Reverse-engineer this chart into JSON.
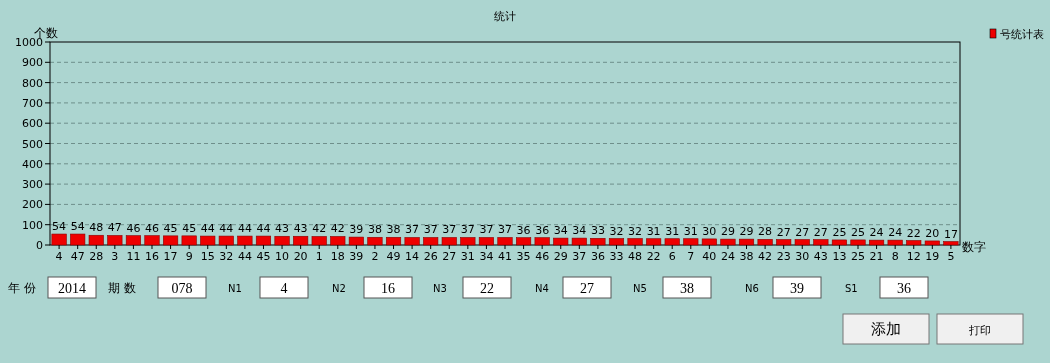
{
  "chart_data": {
    "type": "bar",
    "title": "统计",
    "ylabel": "个数",
    "xlabel": "数字",
    "categories": [
      "4",
      "47",
      "28",
      "3",
      "11",
      "16",
      "17",
      "9",
      "15",
      "32",
      "44",
      "45",
      "10",
      "20",
      "1",
      "18",
      "39",
      "2",
      "49",
      "14",
      "26",
      "27",
      "31",
      "34",
      "41",
      "35",
      "46",
      "29",
      "37",
      "36",
      "33",
      "48",
      "22",
      "6",
      "7",
      "40",
      "24",
      "38",
      "42",
      "23",
      "30",
      "43",
      "13",
      "25",
      "21",
      "8",
      "12",
      "19",
      "5"
    ],
    "series": [
      {
        "name": "号统计表",
        "color": "#ee0000",
        "values": [
          54,
          54,
          48,
          47,
          46,
          46,
          45,
          45,
          44,
          44,
          44,
          44,
          43,
          43,
          42,
          42,
          39,
          38,
          38,
          37,
          37,
          37,
          37,
          37,
          37,
          36,
          36,
          34,
          34,
          33,
          32,
          32,
          31,
          31,
          31,
          30,
          29,
          29,
          28,
          27,
          27,
          27,
          25,
          25,
          24,
          24,
          22,
          20,
          17
        ]
      }
    ],
    "ylim": [
      0,
      1000
    ],
    "yticks": [
      0,
      100,
      200,
      300,
      400,
      500,
      600,
      700,
      800,
      900,
      1000
    ],
    "grid": "y",
    "legend": "top right",
    "data_labels": true,
    "annotations": [
      "年  份",
      "2014",
      "期  数",
      "078",
      "N1",
      "4",
      "N2",
      "16",
      "N3",
      "22",
      "N4",
      "27",
      "N5",
      "38",
      "N6",
      "39",
      "S1",
      "36",
      "添加",
      "打印"
    ]
  }
}
